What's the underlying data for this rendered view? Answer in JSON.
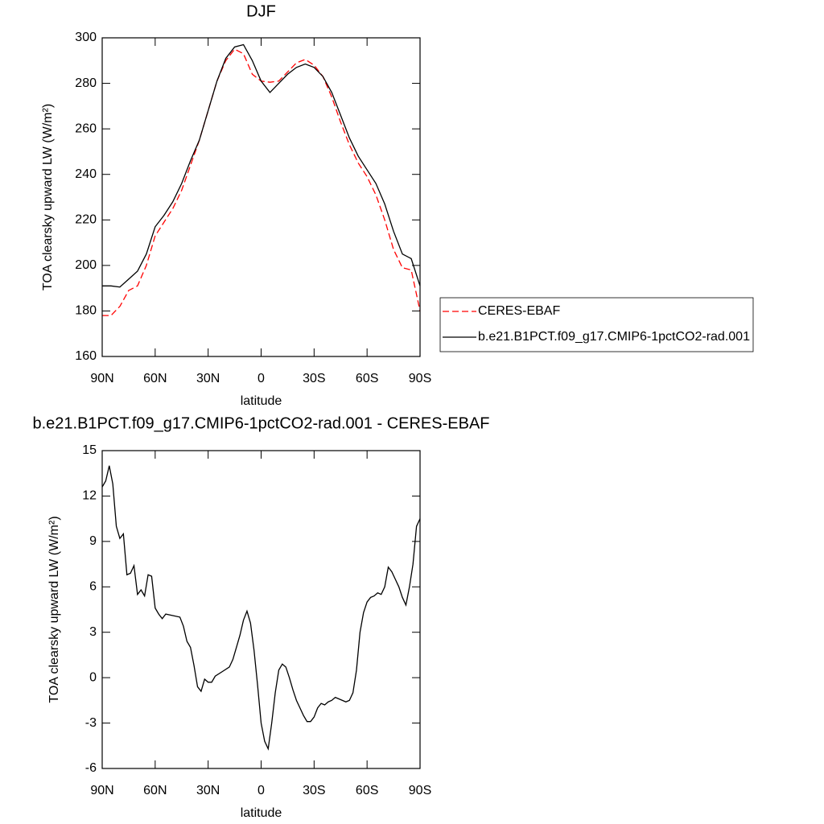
{
  "chart_data": [
    {
      "type": "line",
      "title": "DJF",
      "xlabel": "latitude",
      "ylabel": "TOA clearsky upward LW (W/m²)",
      "x": [
        90,
        85,
        80,
        75,
        70,
        65,
        60,
        55,
        50,
        45,
        40,
        35,
        30,
        25,
        20,
        15,
        10,
        5,
        0,
        -5,
        -10,
        -15,
        -20,
        -25,
        -30,
        -35,
        -40,
        -45,
        -50,
        -55,
        -60,
        -65,
        -70,
        -75,
        -80,
        -85,
        -90
      ],
      "series": [
        {
          "name": "CERES-EBAF",
          "color": "#ff0000",
          "linestyle": "dashed",
          "values": [
            178,
            178,
            182,
            189,
            191,
            200,
            213,
            219,
            225,
            233,
            244,
            255,
            268,
            281,
            290,
            295,
            293,
            284,
            281,
            280.5,
            281,
            285,
            289,
            290.5,
            288,
            283,
            274,
            263,
            253,
            245,
            239,
            231,
            220,
            207,
            199,
            198,
            180
          ]
        },
        {
          "name": "b.e21.B1PCT.f09_g17.CMIP6-1pctCO2-rad.001",
          "color": "#000000",
          "linestyle": "solid",
          "values": [
            191,
            191,
            190.5,
            194,
            197.5,
            205,
            217,
            222,
            228,
            236,
            246,
            255,
            268,
            281,
            291,
            296,
            297,
            290,
            281,
            276,
            280,
            284,
            287,
            288.5,
            287,
            283,
            276,
            266,
            256,
            248,
            242,
            236,
            227,
            215,
            205,
            203,
            191
          ]
        }
      ],
      "xlim": [
        90,
        -90
      ],
      "xticks": [
        {
          "value": 90,
          "label": "90N"
        },
        {
          "value": 60,
          "label": "60N"
        },
        {
          "value": 30,
          "label": "30N"
        },
        0,
        {
          "value": -30,
          "label": "30S"
        },
        {
          "value": -60,
          "label": "60S"
        },
        {
          "value": -90,
          "label": "90S"
        }
      ],
      "ylim": [
        160,
        300
      ],
      "yticks": [
        160,
        180,
        200,
        220,
        240,
        260,
        280,
        300
      ],
      "grid": false,
      "legend": "right"
    },
    {
      "type": "line",
      "title": "b.e21.B1PCT.f09_g17.CMIP6-1pctCO2-rad.001 - CERES-EBAF",
      "xlabel": "latitude",
      "ylabel": "TOA clearsky upward LW (W/m²)",
      "x": [
        90,
        88,
        86,
        84,
        82,
        80,
        78,
        76,
        74,
        72,
        70,
        68,
        66,
        64,
        62,
        60,
        58,
        56,
        54,
        50,
        46,
        44,
        42,
        40,
        38,
        36,
        34,
        32,
        30,
        28,
        26,
        22,
        18,
        16,
        14,
        12,
        10,
        8,
        6,
        4,
        2,
        0,
        -2,
        -4,
        -6,
        -8,
        -10,
        -12,
        -14,
        -16,
        -18,
        -20,
        -22,
        -24,
        -26,
        -28,
        -30,
        -32,
        -34,
        -36,
        -38,
        -40,
        -42,
        -44,
        -46,
        -48,
        -50,
        -52,
        -54,
        -56,
        -58,
        -60,
        -62,
        -64,
        -66,
        -68,
        -70,
        -72,
        -74,
        -76,
        -78,
        -80,
        -82,
        -84,
        -86,
        -88,
        -90
      ],
      "series": [
        {
          "color": "#000000",
          "linestyle": "solid",
          "values": [
            12.6,
            13.0,
            14.0,
            12.8,
            10.0,
            9.2,
            9.5,
            6.8,
            6.9,
            7.4,
            5.5,
            5.8,
            5.4,
            6.8,
            6.7,
            4.6,
            4.2,
            3.9,
            4.2,
            4.1,
            4.0,
            3.4,
            2.4,
            2.0,
            0.8,
            -0.6,
            -0.9,
            -0.1,
            -0.3,
            -0.3,
            0.1,
            0.4,
            0.7,
            1.2,
            2.0,
            2.8,
            3.8,
            4.4,
            3.6,
            1.8,
            -0.5,
            -3.0,
            -4.2,
            -4.7,
            -3.0,
            -1.0,
            0.5,
            0.9,
            0.7,
            0.0,
            -0.8,
            -1.5,
            -2.0,
            -2.5,
            -2.9,
            -2.9,
            -2.6,
            -2.0,
            -1.7,
            -1.8,
            -1.6,
            -1.5,
            -1.3,
            -1.4,
            -1.5,
            -1.6,
            -1.5,
            -1.0,
            0.5,
            3.0,
            4.3,
            5.0,
            5.3,
            5.4,
            5.6,
            5.5,
            6.0,
            7.3,
            7.0,
            6.5,
            6.0,
            5.3,
            4.8,
            6.0,
            7.5,
            10.0,
            10.5
          ]
        }
      ],
      "xlim": [
        90,
        -90
      ],
      "xticks": [
        {
          "value": 90,
          "label": "90N"
        },
        {
          "value": 60,
          "label": "60N"
        },
        {
          "value": 30,
          "label": "30N"
        },
        0,
        {
          "value": -30,
          "label": "30S"
        },
        {
          "value": -60,
          "label": "60S"
        },
        {
          "value": -90,
          "label": "90S"
        }
      ],
      "ylim": [
        -6,
        15
      ],
      "yticks": [
        -6,
        -3,
        0,
        3,
        6,
        9,
        12,
        15
      ],
      "grid": false
    }
  ]
}
